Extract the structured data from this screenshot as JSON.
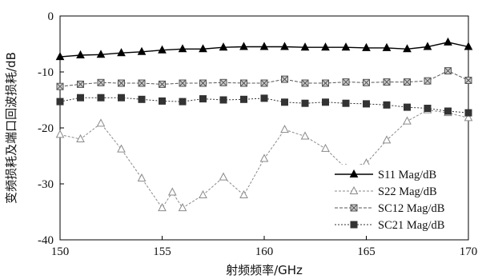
{
  "chart_data": {
    "type": "line",
    "xlabel": "射频频率/GHz",
    "ylabel": "变频损耗及端口回波损耗/dB",
    "xlim": [
      150,
      170
    ],
    "ylim": [
      -40,
      0
    ],
    "xticks": [
      "150",
      "155",
      "160",
      "165",
      "170"
    ],
    "yticks": [
      "0",
      "-10",
      "-20",
      "-30",
      "-40"
    ],
    "grid": false,
    "legend_position": "bottom-right",
    "colors": {
      "S11 Mag/dB": "#000000",
      "S22 Mag/dB": "#8a8a8a",
      "SC12 Mag/dB": "#555555",
      "SC21 Mag/dB": "#333333"
    },
    "series": [
      {
        "name": "S11 Mag/dB",
        "marker": "triangle",
        "x": [
          150,
          151,
          152,
          153,
          154,
          155,
          156,
          157,
          158,
          159,
          160,
          161,
          162,
          163,
          164,
          165,
          166,
          167,
          168,
          169,
          170
        ],
        "y": [
          -7.3,
          -7.0,
          -6.9,
          -6.6,
          -6.4,
          -6.1,
          -5.9,
          -5.9,
          -5.6,
          -5.5,
          -5.5,
          -5.5,
          -5.6,
          -5.6,
          -5.6,
          -5.7,
          -5.7,
          -5.9,
          -5.5,
          -4.7,
          -5.5
        ]
      },
      {
        "name": "S22 Mag/dB",
        "marker": "triangle-open",
        "x": [
          150,
          151,
          152,
          153,
          154,
          155,
          155.5,
          156,
          157,
          158,
          159,
          160,
          161,
          162,
          163,
          164,
          165,
          166,
          167,
          168,
          169,
          170
        ],
        "y": [
          -21.2,
          -22.0,
          -19.2,
          -23.8,
          -29.0,
          -34.3,
          -31.5,
          -34.3,
          -32.0,
          -28.8,
          -32.0,
          -25.5,
          -20.3,
          -21.5,
          -23.7,
          -27.2,
          -26.3,
          -22.2,
          -18.8,
          -16.8,
          -17.3,
          -18.2
        ]
      },
      {
        "name": "SC12 Mag/dB",
        "marker": "square-x",
        "x": [
          150,
          151,
          152,
          153,
          154,
          155,
          156,
          157,
          158,
          159,
          160,
          161,
          162,
          163,
          164,
          165,
          166,
          167,
          168,
          169,
          170
        ],
        "y": [
          -12.6,
          -12.2,
          -11.9,
          -12.0,
          -12.0,
          -12.2,
          -12.0,
          -12.0,
          -11.9,
          -12.0,
          -12.0,
          -11.3,
          -12.0,
          -12.0,
          -11.8,
          -11.9,
          -11.8,
          -11.8,
          -11.6,
          -9.8,
          -11.5
        ]
      },
      {
        "name": "SC21 Mag/dB",
        "marker": "square-filled",
        "x": [
          150,
          151,
          152,
          153,
          154,
          155,
          156,
          157,
          158,
          159,
          160,
          161,
          162,
          163,
          164,
          165,
          166,
          167,
          168,
          169,
          170
        ],
        "y": [
          -15.3,
          -14.6,
          -14.6,
          -14.6,
          -14.9,
          -15.2,
          -15.3,
          -14.8,
          -15.0,
          -14.9,
          -14.7,
          -15.4,
          -15.6,
          -15.4,
          -15.6,
          -15.7,
          -15.9,
          -16.3,
          -16.5,
          -17.0,
          -17.3
        ]
      }
    ]
  }
}
